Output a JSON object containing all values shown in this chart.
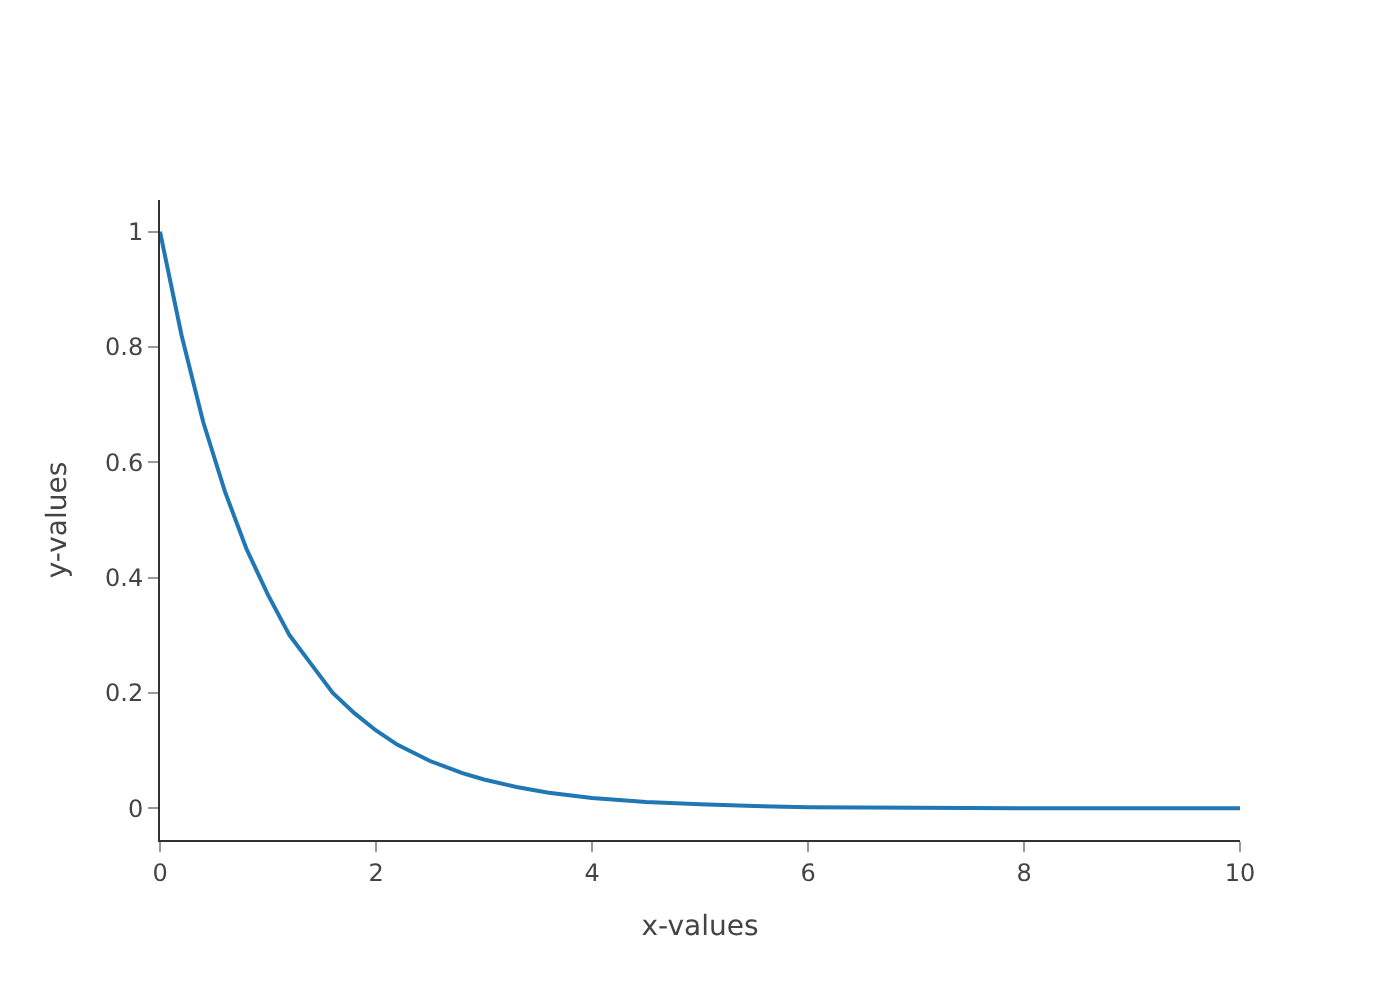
{
  "chart_data": {
    "type": "line",
    "xlabel": "x-values",
    "ylabel": "y-values",
    "x": [
      0,
      0.2,
      0.4,
      0.6,
      0.8,
      1,
      1.2,
      1.4,
      1.6,
      1.8,
      2,
      2.2,
      2.5,
      2.8,
      3,
      3.3,
      3.6,
      4,
      4.5,
      5,
      5.5,
      6,
      7,
      8,
      9,
      10
    ],
    "series": [
      {
        "color": "#1f77b4",
        "values": [
          1,
          0.82,
          0.67,
          0.55,
          0.45,
          0.37,
          0.3,
          0.25,
          0.2,
          0.165,
          0.135,
          0.11,
          0.082,
          0.061,
          0.05,
          0.037,
          0.027,
          0.018,
          0.011,
          0.007,
          0.004,
          0.002,
          0.001,
          0,
          0,
          0
        ]
      }
    ],
    "xlim": [
      0,
      10
    ],
    "xticks": [
      0,
      2,
      4,
      6,
      8,
      10
    ],
    "ylim": [
      -0.055,
      1.055
    ],
    "yticks": [
      0,
      0.2,
      0.4,
      0.6,
      0.8,
      1
    ],
    "marker": "none",
    "line_style": "solid"
  }
}
